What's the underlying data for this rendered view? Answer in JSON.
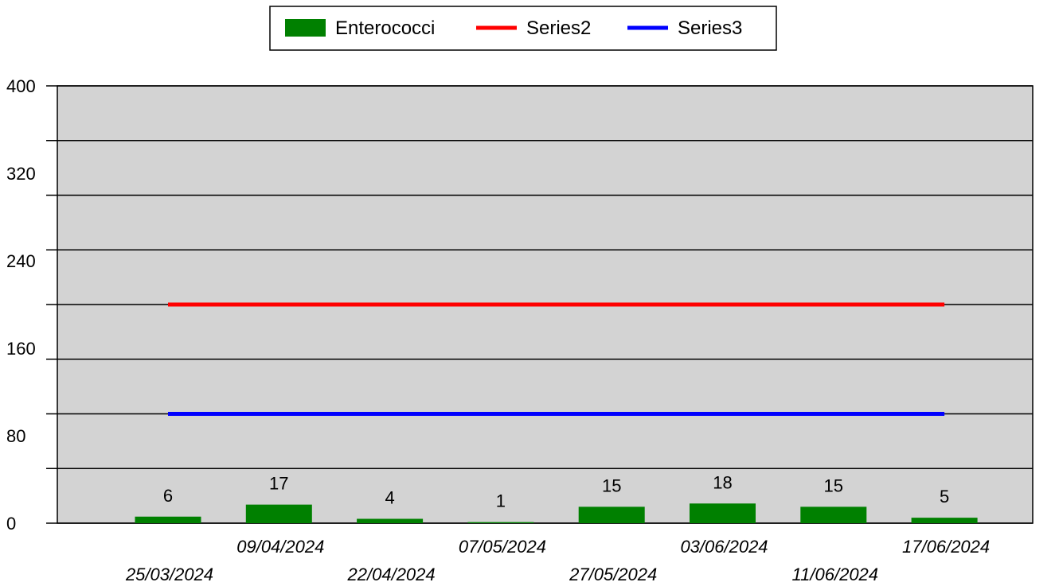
{
  "chart_data": {
    "type": "bar",
    "categories": [
      "25/03/2024",
      "09/04/2024",
      "22/04/2024",
      "07/05/2024",
      "27/05/2024",
      "03/06/2024",
      "11/06/2024",
      "17/06/2024"
    ],
    "series": [
      {
        "name": "Enterococci",
        "type": "bar",
        "values": [
          6,
          17,
          4,
          1,
          15,
          18,
          15,
          5
        ],
        "color": "#008000"
      },
      {
        "name": "Series2",
        "type": "line",
        "values": [
          200,
          200,
          200,
          200,
          200,
          200,
          200,
          200
        ],
        "color": "#ff0000"
      },
      {
        "name": "Series3",
        "type": "line",
        "values": [
          100,
          100,
          100,
          100,
          100,
          100,
          100,
          100
        ],
        "color": "#0000ff"
      }
    ],
    "data_labels": [
      "6",
      "17",
      "4",
      "1",
      "15",
      "18",
      "15",
      "5"
    ],
    "yticks": [
      "0",
      "80",
      "160",
      "240",
      "320",
      "400"
    ],
    "ytick_values": [
      0,
      80,
      160,
      240,
      320,
      400
    ],
    "ylim": [
      0,
      400
    ],
    "gridlines": [
      0,
      50,
      100,
      150,
      200,
      250,
      300,
      350,
      400
    ],
    "grid": true,
    "legend_position": "top-center",
    "plot_background": "#d3d3d3"
  }
}
